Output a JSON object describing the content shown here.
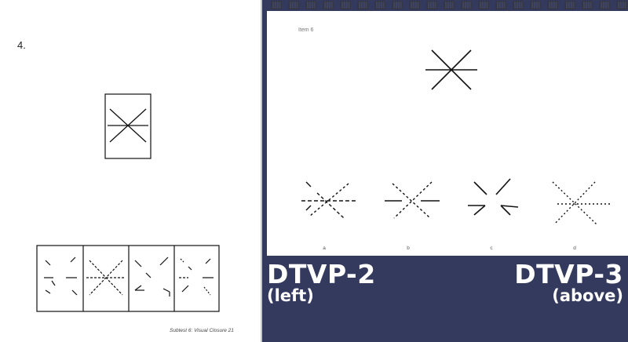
{
  "left_page": {
    "item_number": "4.",
    "footer": "Subtest 6: Visual Closure   21"
  },
  "right_page": {
    "item_label": "Item 6",
    "choice_letters": [
      "a",
      "b",
      "c",
      "d"
    ]
  },
  "captions": {
    "left_title": "DTVP-2",
    "left_sub": "(left)",
    "right_title": "DTVP-3",
    "right_sub": "(above)"
  },
  "colors": {
    "panel_background": "#34395e",
    "caption_text": "#ffffff",
    "figure_stroke": "#111111"
  }
}
